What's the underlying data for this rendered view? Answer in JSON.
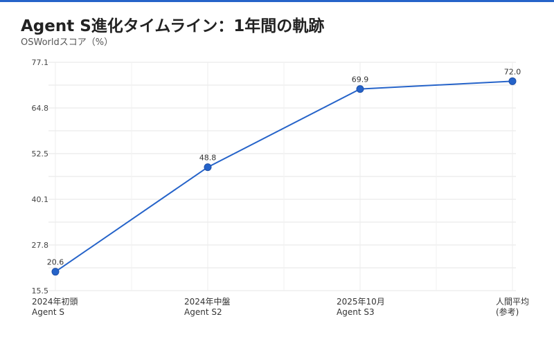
{
  "chart_data": {
    "type": "line",
    "title": "Agent S進化タイムライン：1年間の軌跡",
    "subtitle": "OSWorldスコア（%）",
    "categories": [
      [
        "2024年初頭",
        "Agent S"
      ],
      [
        "2024年中盤",
        "Agent S2"
      ],
      [
        "2025年10月",
        "Agent S3"
      ],
      [
        "人間平均",
        "(参考)"
      ]
    ],
    "series": [
      {
        "values": [
          20.6,
          48.8,
          69.9,
          72.0
        ],
        "labels": [
          "20.6",
          "48.8",
          "69.9",
          "72.0"
        ]
      }
    ],
    "ylim": [
      15.5,
      77.1
    ],
    "yticks": [
      "77.1",
      "64.8",
      "52.5",
      "40.1",
      "27.8",
      "15.5"
    ],
    "grid": true,
    "line_color": "#2563c9"
  }
}
